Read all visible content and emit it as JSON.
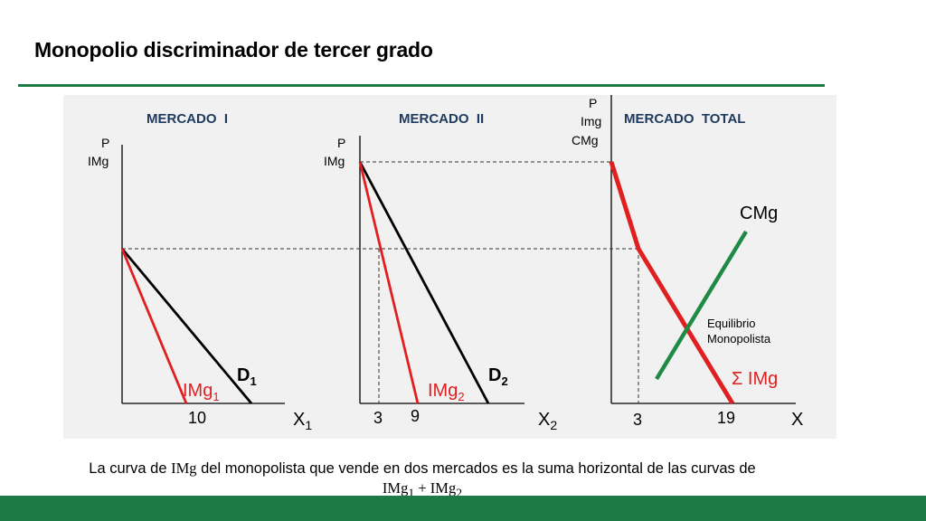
{
  "title": "Monopolio discriminador de tercer grado",
  "colors": {
    "accent_green": "#1e7a45",
    "curve_red": "#e02020",
    "demand_black": "#000000",
    "cmg_green": "#1f8a44",
    "panel_bg": "#f1f1f1",
    "market_heading": "#1f3a5f"
  },
  "markets": [
    {
      "heading": "MERCADO  I",
      "yaxis": [
        "P",
        "IMg"
      ],
      "xaxis": {
        "main": "X",
        "sub": "1"
      },
      "demand": {
        "main": "D",
        "sub": "1"
      },
      "mr": {
        "main": "IMg",
        "sub": "1"
      },
      "ticks": [
        "10"
      ]
    },
    {
      "heading": "MERCADO  II",
      "yaxis": [
        "P",
        "IMg"
      ],
      "xaxis": {
        "main": "X",
        "sub": "2"
      },
      "demand": {
        "main": "D",
        "sub": "2"
      },
      "mr": {
        "main": "IMg",
        "sub": "2"
      },
      "ticks": [
        "3",
        "9"
      ]
    },
    {
      "heading": "MERCADO  TOTAL",
      "yaxis": [
        "P",
        "Img",
        "CMg"
      ],
      "xaxis": {
        "main": "X",
        "sub": ""
      },
      "cmg_label": "CMg",
      "sum_label": "Σ IMg",
      "equilibrium": [
        "Equilibrio",
        "Monopolista"
      ],
      "ticks": [
        "3",
        "19"
      ]
    }
  ],
  "caption": {
    "before": "La curva de ",
    "term": "IMg",
    "after": " del monopolista que vende en dos mercados es la suma horizontal de las curvas de",
    "line2": {
      "a": "IMg",
      "a_sub": "1",
      "plus": " + ",
      "b": "IMg",
      "b_sub": "2"
    }
  }
}
